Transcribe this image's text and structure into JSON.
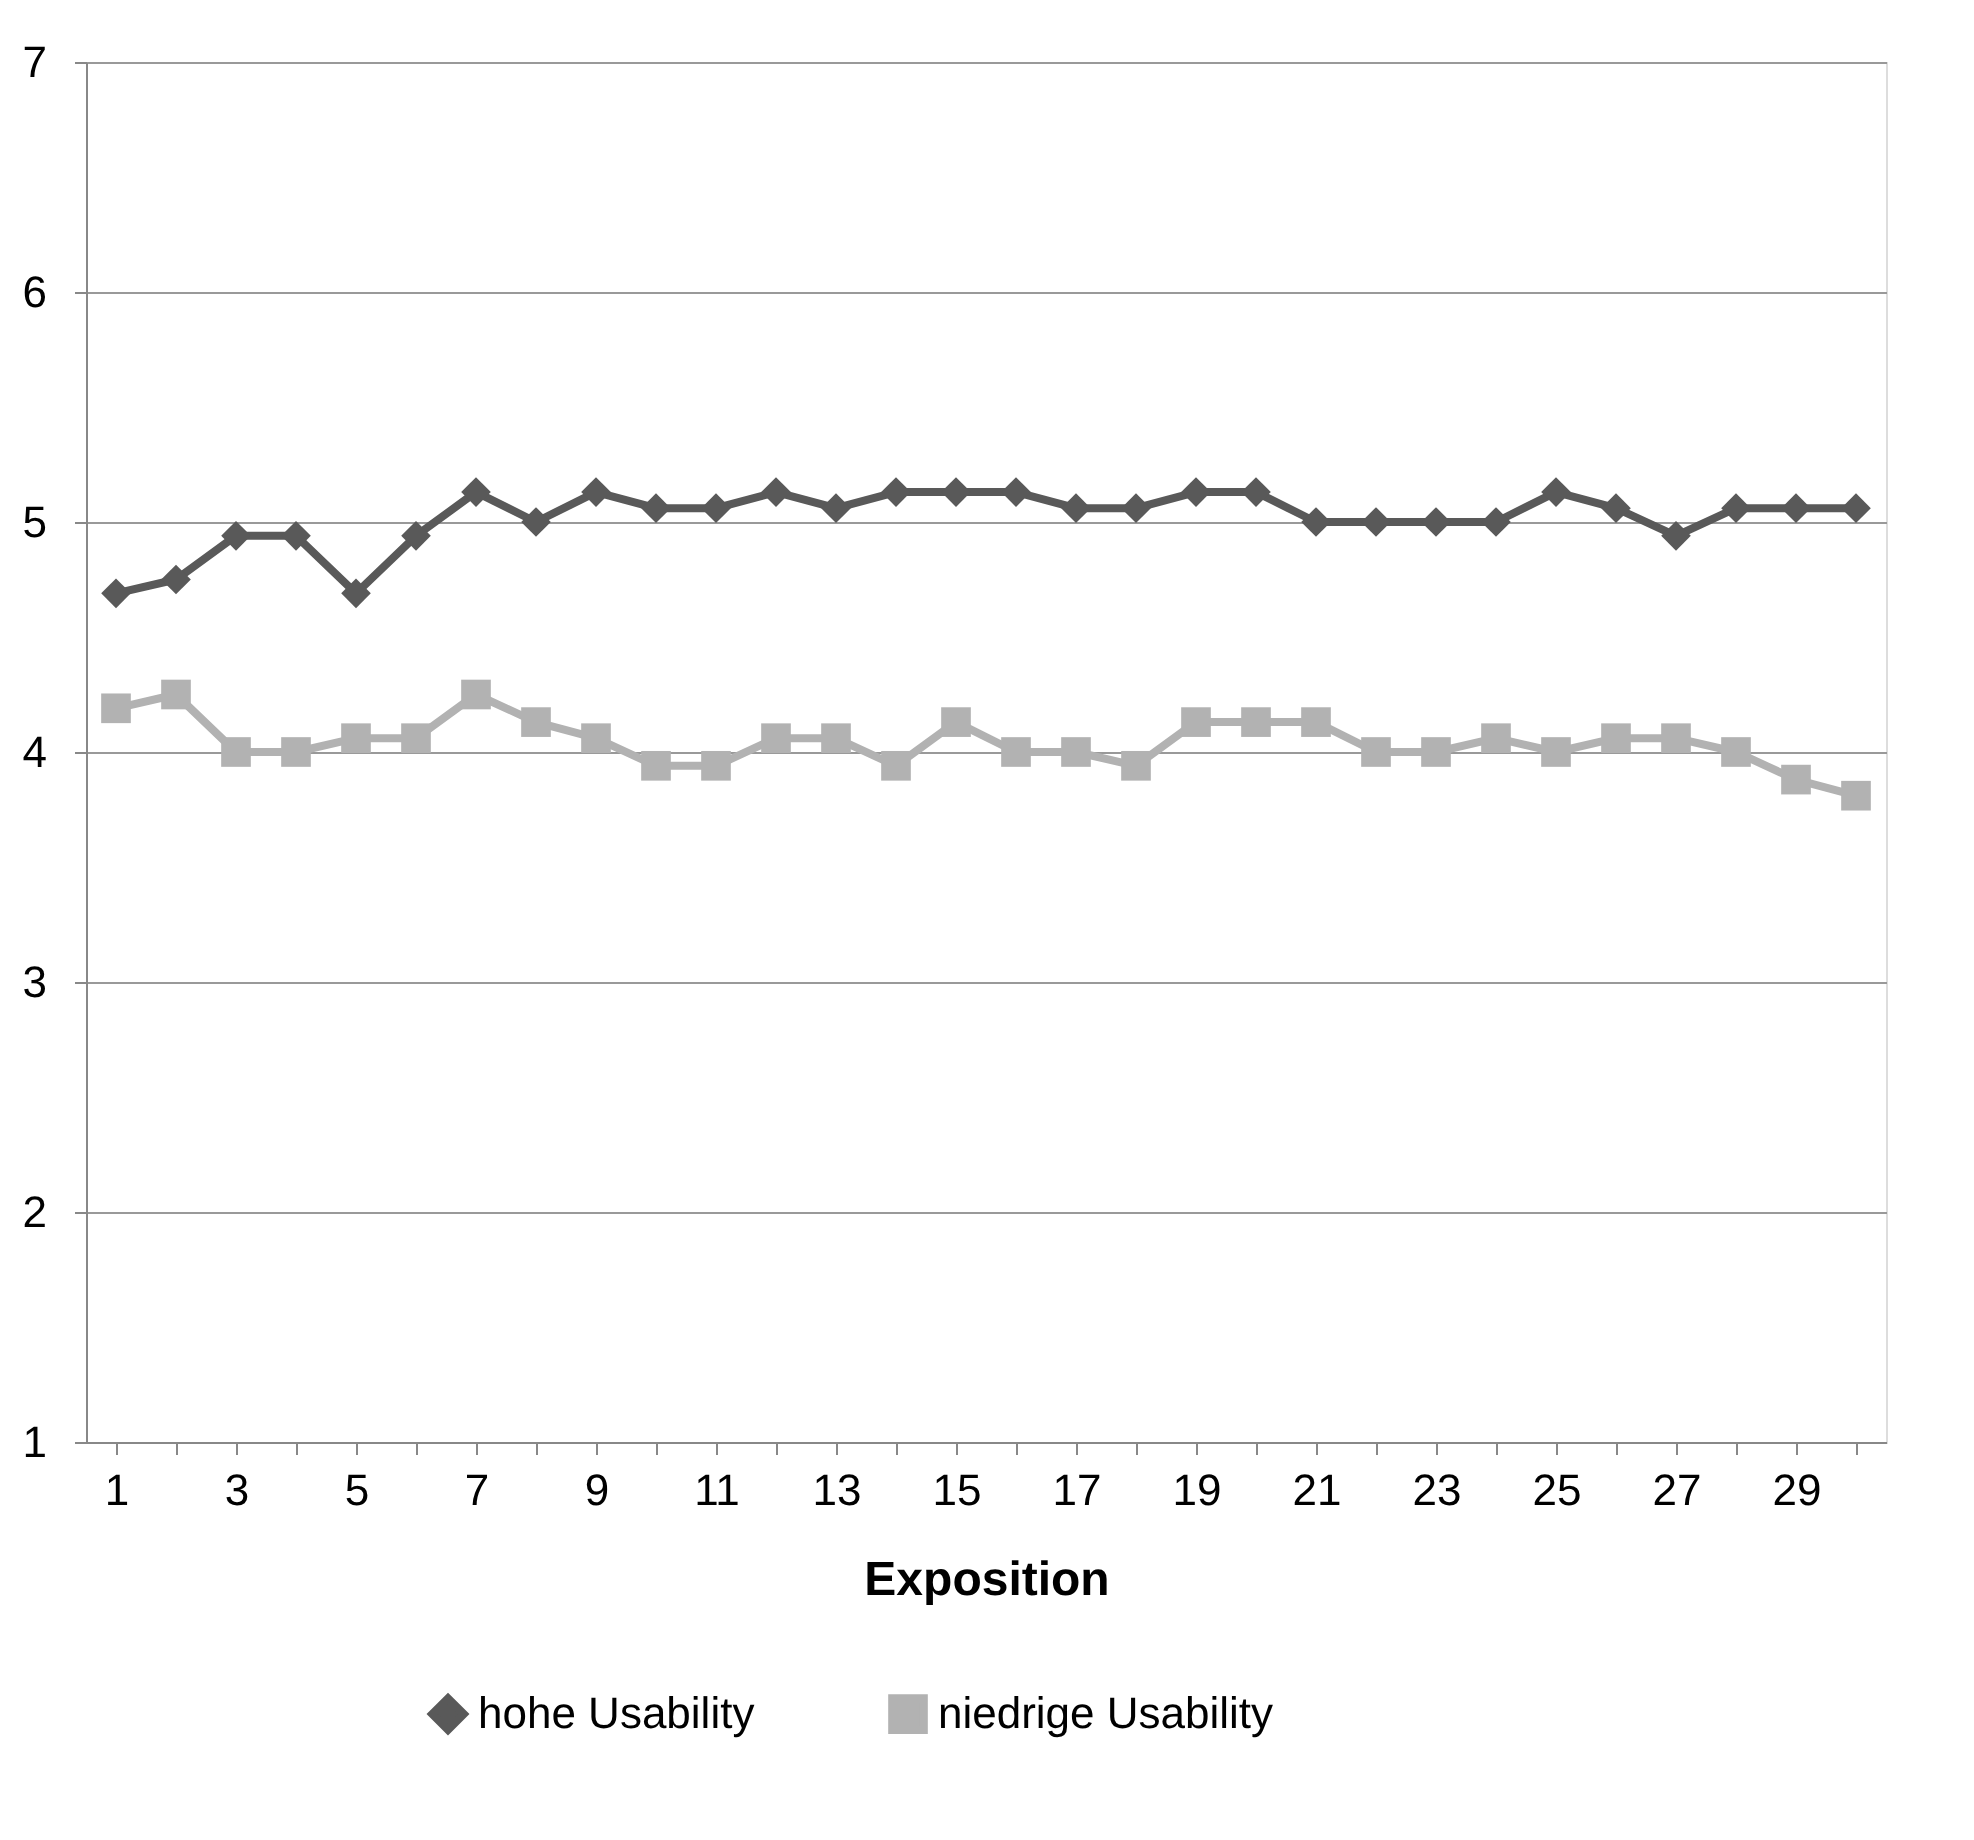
{
  "chart_data": {
    "type": "line",
    "xlabel": "Exposition",
    "x": [
      1,
      2,
      3,
      4,
      5,
      6,
      7,
      8,
      9,
      10,
      11,
      12,
      13,
      14,
      15,
      16,
      17,
      18,
      19,
      20,
      21,
      22,
      23,
      24,
      25,
      26,
      27,
      28,
      29,
      30
    ],
    "series": [
      {
        "name": "hohe Usability",
        "color": "#595959",
        "marker": "diamond",
        "values": [
          4.69,
          4.75,
          4.94,
          4.94,
          4.69,
          4.94,
          5.13,
          5.0,
          5.13,
          5.06,
          5.06,
          5.13,
          5.06,
          5.13,
          5.13,
          5.13,
          5.06,
          5.06,
          5.13,
          5.13,
          5.0,
          5.0,
          5.0,
          5.0,
          5.13,
          5.06,
          4.94,
          5.06,
          5.06,
          5.06
        ]
      },
      {
        "name": "niedrige Usability",
        "color": "#b2b2b2",
        "marker": "square",
        "values": [
          4.19,
          4.25,
          4.0,
          4.0,
          4.06,
          4.06,
          4.25,
          4.13,
          4.06,
          3.94,
          3.94,
          4.06,
          4.06,
          3.94,
          4.13,
          4.0,
          4.0,
          3.94,
          4.13,
          4.13,
          4.13,
          4.0,
          4.0,
          4.06,
          4.0,
          4.06,
          4.06,
          4.0,
          3.88,
          3.81
        ]
      }
    ],
    "xlim": [
      0.5,
      30.5
    ],
    "xticks": [
      1,
      {
        "value": 2,
        "label": null
      },
      3,
      {
        "value": 4,
        "label": null
      },
      5,
      {
        "value": 6,
        "label": null
      },
      7,
      {
        "value": 8,
        "label": null
      },
      9,
      {
        "value": 10,
        "label": null
      },
      11,
      {
        "value": 12,
        "label": null
      },
      13,
      {
        "value": 14,
        "label": null
      },
      15,
      {
        "value": 16,
        "label": null
      },
      17,
      {
        "value": 18,
        "label": null
      },
      19,
      {
        "value": 20,
        "label": null
      },
      21,
      {
        "value": 22,
        "label": null
      },
      23,
      {
        "value": 24,
        "label": null
      },
      25,
      {
        "value": 26,
        "label": null
      },
      27,
      {
        "value": 28,
        "label": null
      },
      29,
      {
        "value": 30,
        "label": null
      }
    ],
    "ylim": [
      1,
      7
    ],
    "yticks": [
      1,
      2,
      3,
      4,
      5,
      6,
      7
    ],
    "grid": "y",
    "legend": "bottom",
    "line_style": "solid"
  }
}
